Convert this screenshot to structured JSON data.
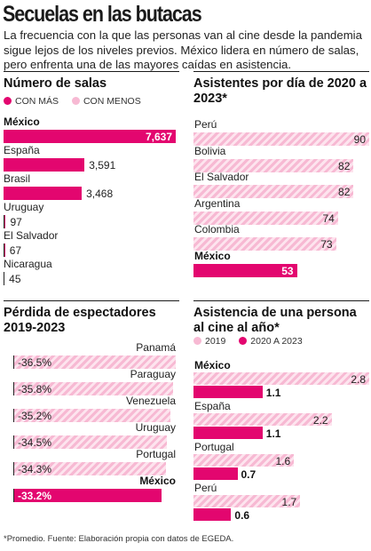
{
  "header": {
    "title": "Secuelas en las butacas",
    "subtitle": "La frecuencia con la que las personas van al cine desde la pandemia sigue lejos de los niveles previos. México lidera en número de salas, pero enfrenta una de las mayores caídas en asistencia."
  },
  "colors": {
    "accent": "#e3066f",
    "light": "#f7b9d3",
    "hatch_bg": "#fde4ee"
  },
  "chart_data": [
    {
      "type": "bar",
      "title": "Número de salas",
      "legend": [
        "CON MÁS",
        "CON MENOS"
      ],
      "categories": [
        "México",
        "España",
        "Brasil",
        "Uruguay",
        "El Salvador",
        "Nicaragua"
      ],
      "values": [
        7637,
        3591,
        3468,
        97,
        67,
        45
      ],
      "value_labels": [
        "7,637",
        "3,591",
        "3,468",
        "97",
        "67",
        "45"
      ],
      "highlight": "México"
    },
    {
      "type": "bar",
      "title": "Asistentes por día de 2020 a 2023*",
      "categories": [
        "Perú",
        "Bolivia",
        "El Salvador",
        "Argentina",
        "Colombia",
        "México"
      ],
      "values": [
        90,
        82,
        82,
        74,
        73,
        53
      ],
      "highlight": "México"
    },
    {
      "type": "bar",
      "title": "Pérdida de espectadores 2019-2023",
      "categories": [
        "Panamá",
        "Paraguay",
        "Venezuela",
        "Uruguay",
        "Portugal",
        "México"
      ],
      "values": [
        -36.5,
        -35.8,
        -35.2,
        -34.5,
        -34.3,
        -33.2
      ],
      "value_labels": [
        "-36.5%",
        "-35.8%",
        "-35.2%",
        "-34.5%",
        "-34.3%",
        "-33.2%"
      ],
      "highlight": "México"
    },
    {
      "type": "bar",
      "title": "Asistencia de una persona al cine al año*",
      "legend": [
        "2019",
        "2020 A 2023"
      ],
      "categories": [
        "México",
        "España",
        "Portugal",
        "Perú"
      ],
      "series": [
        {
          "name": "2019",
          "values": [
            2.8,
            2.2,
            1.6,
            1.7
          ]
        },
        {
          "name": "2020 A 2023",
          "values": [
            1.1,
            1.1,
            0.7,
            0.6
          ]
        }
      ],
      "highlight": "México"
    }
  ],
  "footnote": "*Promedio. Fuente: Elaboración propia con datos de EGEDA."
}
